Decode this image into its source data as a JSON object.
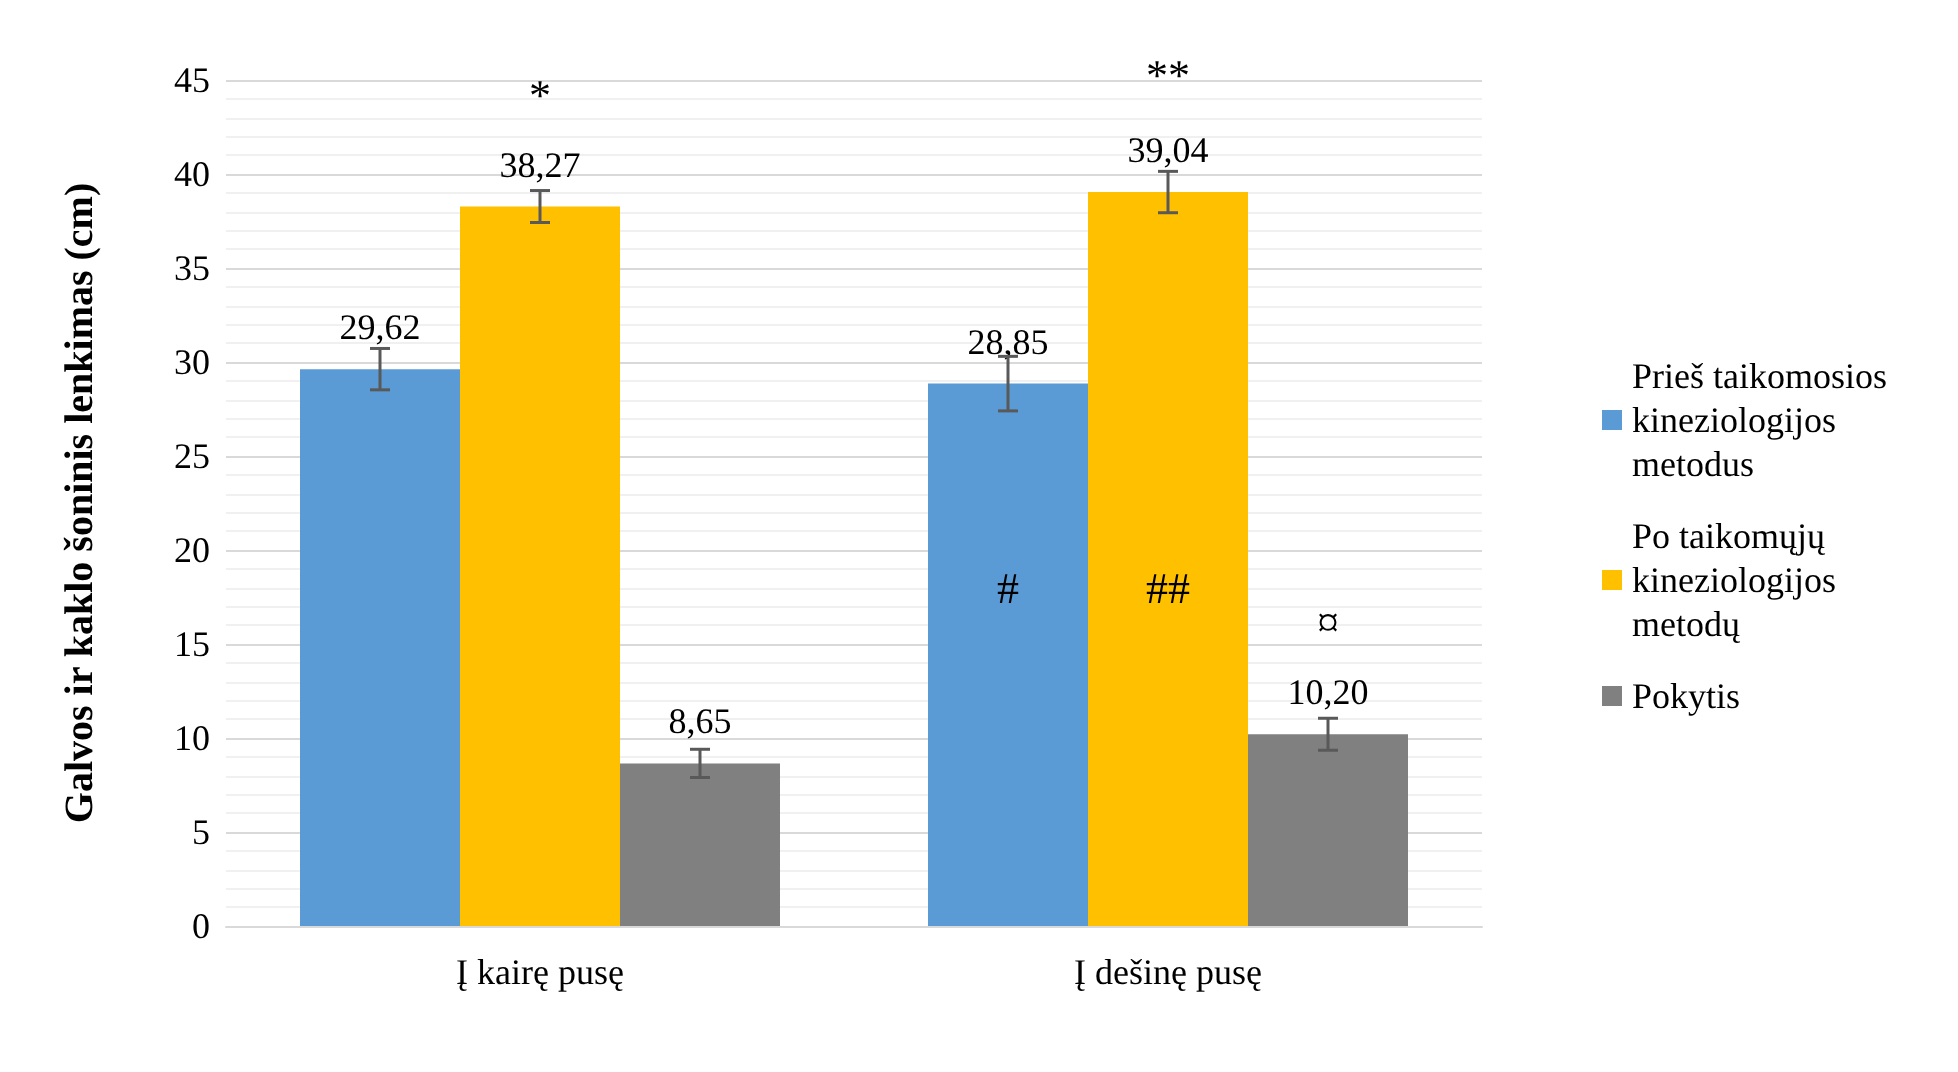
{
  "chart_data": {
    "type": "bar",
    "ylabel": "Galvos ir kaklo šoninis lenkimas (cm)",
    "categories": [
      "Į kairę pusę",
      "Į dešinę pusę"
    ],
    "series": [
      {
        "name": "Prieš taikomosios kineziologijos metodus",
        "color": "#5b9bd5",
        "values": [
          29.62,
          28.85
        ],
        "errors": [
          1.1,
          1.45
        ],
        "value_labels": [
          "29,62",
          "28,85"
        ]
      },
      {
        "name": "Po taikomųjų kineziologijos metodų",
        "color": "#ffc000",
        "values": [
          38.27,
          39.04
        ],
        "errors": [
          0.85,
          1.1
        ],
        "value_labels": [
          "38,27",
          "39,04"
        ]
      },
      {
        "name": "Pokytis",
        "color": "#808080",
        "values": [
          8.65,
          10.2
        ],
        "errors": [
          0.75,
          0.85
        ],
        "value_labels": [
          "8,65",
          "10,20"
        ]
      }
    ],
    "annotations": [
      "*",
      "**",
      "#",
      "##",
      "¤"
    ],
    "ylim": [
      0,
      45
    ],
    "yticks": [
      0,
      5,
      10,
      15,
      20,
      25,
      30,
      35,
      40,
      45
    ],
    "grid": true,
    "legend": "right"
  }
}
